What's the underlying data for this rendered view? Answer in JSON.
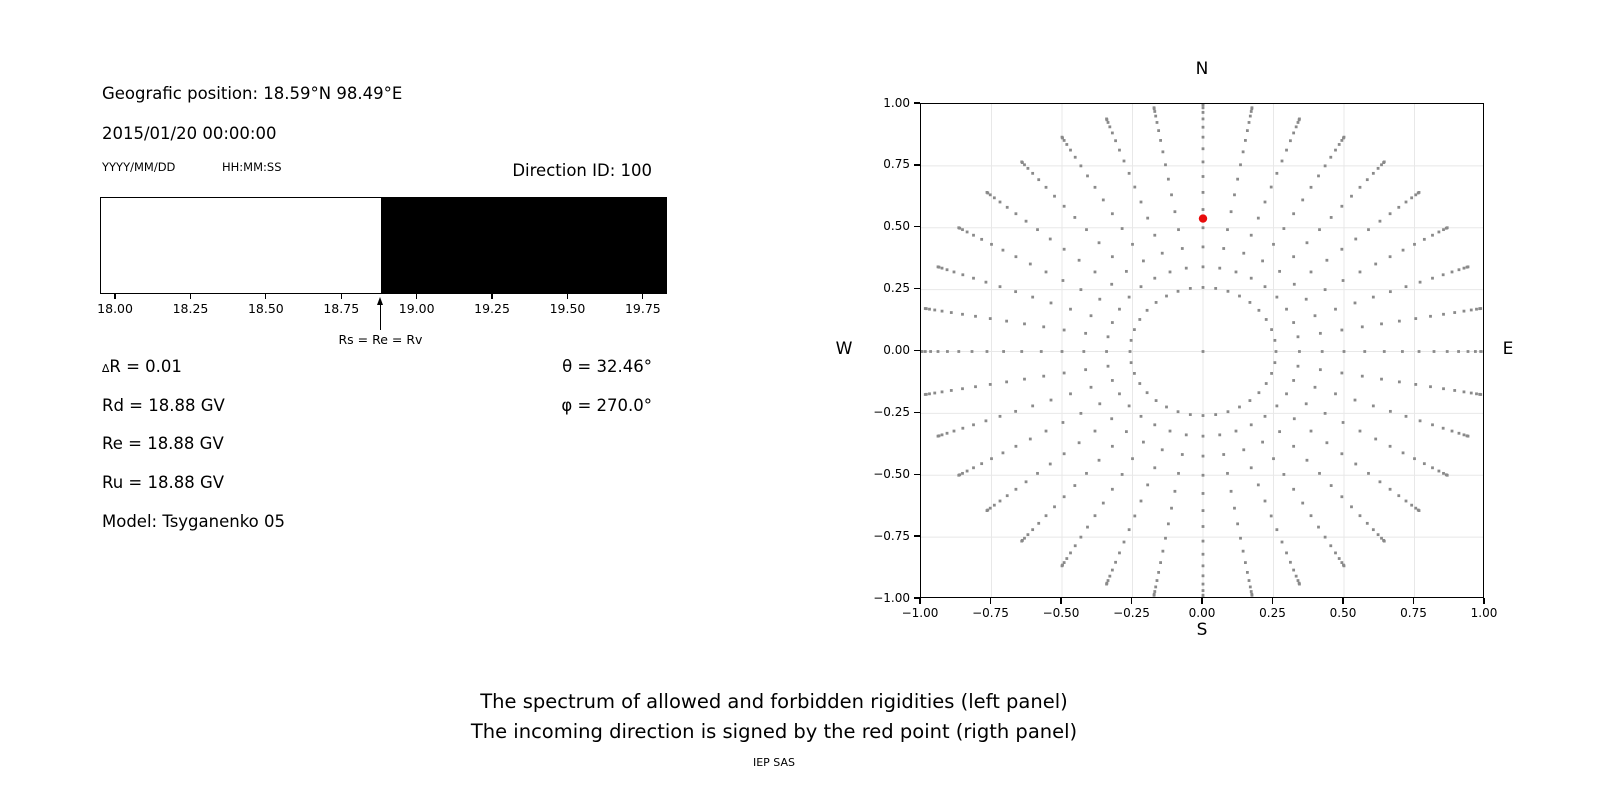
{
  "left_panel": {
    "geo_position": "Geografic position: 18.59°N 98.49°E",
    "datetime": "2015/01/20 00:00:00",
    "date_format_label": "YYYY/MM/DD",
    "time_format_label": "HH:MM:SS",
    "direction_id": "Direction ID: 100",
    "marker_label": "Rs = Re = Rv",
    "delta_symbol": "∆",
    "delta_row_rest": "R = 0.01",
    "rd_row": "Rd = 18.88 GV",
    "re_row": "Re = 18.88 GV",
    "ru_row": "Ru = 18.88 GV",
    "model_row": "Model: Tsyganenko 05",
    "theta_row": "θ = 32.46°",
    "phi_row": "φ = 270.0°"
  },
  "right_panel": {
    "north": "N",
    "south": "S",
    "west": "W",
    "east": "E"
  },
  "caption": {
    "line1": "The spectrum of allowed and forbidden rigidities (left panel)",
    "line2": "The incoming direction is signed by the red point (rigth panel)",
    "credit": "IEP SAS"
  },
  "chart_data": [
    {
      "type": "area",
      "name": "rigidity-spectrum",
      "xlim": [
        17.95,
        19.83
      ],
      "x_tick_labels": [
        "18.00",
        "18.25",
        "18.50",
        "18.75",
        "19.00",
        "19.25",
        "19.50",
        "19.75"
      ],
      "x_tick_values": [
        18.0,
        18.25,
        18.5,
        18.75,
        19.0,
        19.25,
        19.5,
        19.75
      ],
      "regions": [
        {
          "label": "allowed rigidities",
          "from": 17.95,
          "to": 18.88,
          "color": "#ffffff"
        },
        {
          "label": "forbidden rigidities",
          "from": 18.88,
          "to": 19.83,
          "color": "#000000"
        }
      ],
      "marker": {
        "value": 18.88,
        "label": "Rs = Re = Rv"
      },
      "values": {
        "delta_R": 0.01,
        "Rd_GV": 18.88,
        "Re_GV": 18.88,
        "Ru_GV": 18.88,
        "theta_deg": 32.46,
        "phi_deg": 270.0
      }
    },
    {
      "type": "scatter",
      "name": "incoming-direction-sky-map",
      "xlim": [
        -1,
        1
      ],
      "ylim": [
        -1,
        1
      ],
      "grid": true,
      "grid_color": "#e8e8e8",
      "x_tick_labels": [
        "−1.00",
        "−0.75",
        "−0.50",
        "−0.25",
        "0.00",
        "0.25",
        "0.50",
        "0.75",
        "1.00"
      ],
      "y_tick_labels": [
        "1.00",
        "0.75",
        "0.50",
        "0.25",
        "0.00",
        "−0.25",
        "−0.50",
        "−0.75",
        "−1.00"
      ],
      "x_tick_values": [
        -1,
        -0.75,
        -0.5,
        -0.25,
        0,
        0.25,
        0.5,
        0.75,
        1
      ],
      "y_tick_values": [
        1,
        0.75,
        0.5,
        0.25,
        0,
        -0.25,
        -0.5,
        -0.75,
        -1
      ],
      "dot_grid": {
        "azimuth_start_deg": 0,
        "azimuth_step_deg": 10,
        "azimuth_count": 36,
        "zenith_start_deg": 15,
        "zenith_step_deg": 5,
        "zenith_count": 16,
        "radius_rule": "sin(zenith)",
        "center_point": [
          0,
          0
        ]
      },
      "dot_color": "#8a8a8a",
      "red_point": {
        "x": 0.0,
        "y": 0.537,
        "color": "#e80b0b"
      }
    }
  ]
}
